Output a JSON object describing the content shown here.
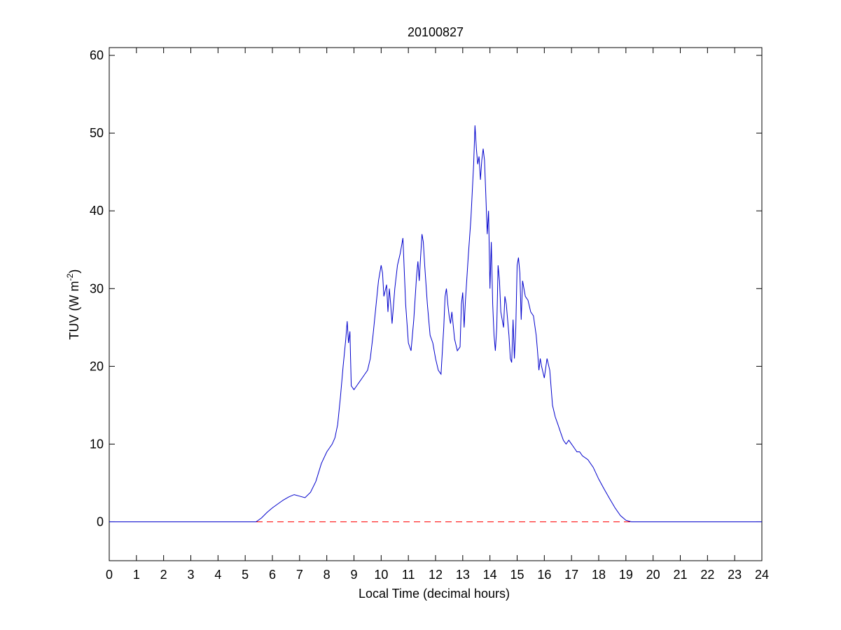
{
  "chart_data": {
    "type": "line",
    "title": "20100827",
    "xlabel": "Local Time (decimal hours)",
    "ylabel_main": "TUV (W m",
    "ylabel_sup": "-2",
    "ylabel_close": ")",
    "xlim": [
      0,
      24
    ],
    "ylim": [
      -5,
      61
    ],
    "xticks": [
      0,
      1,
      2,
      3,
      4,
      5,
      6,
      7,
      8,
      9,
      10,
      11,
      12,
      13,
      14,
      15,
      16,
      17,
      18,
      19,
      20,
      21,
      22,
      23,
      24
    ],
    "yticks": [
      0,
      10,
      20,
      30,
      40,
      50,
      60
    ],
    "grid": false,
    "colors": {
      "series": "#0000cc",
      "reference": "#ff0000",
      "axes": "#000000"
    },
    "reference_line": {
      "y": 0,
      "style": "dashed"
    },
    "series": [
      {
        "x": [
          0,
          5.4,
          5.6,
          5.8,
          6.0,
          6.2,
          6.4,
          6.6,
          6.8,
          7.0,
          7.2,
          7.4,
          7.6,
          7.8,
          8.0,
          8.1,
          8.2,
          8.3,
          8.4,
          8.5,
          8.6,
          8.7,
          8.75,
          8.8,
          8.85,
          8.9,
          9.0,
          9.1,
          9.2,
          9.3,
          9.4,
          9.5,
          9.6,
          9.7,
          9.8,
          9.9,
          10.0,
          10.05,
          10.1,
          10.2,
          10.25,
          10.3,
          10.35,
          10.4,
          10.5,
          10.55,
          10.6,
          10.7,
          10.8,
          10.9,
          11.0,
          11.1,
          11.2,
          11.3,
          11.35,
          11.4,
          11.45,
          11.5,
          11.55,
          11.6,
          11.7,
          11.8,
          11.9,
          12.0,
          12.1,
          12.2,
          12.3,
          12.35,
          12.4,
          12.45,
          12.5,
          12.55,
          12.6,
          12.7,
          12.8,
          12.9,
          12.95,
          13.0,
          13.05,
          13.1,
          13.2,
          13.3,
          13.4,
          13.45,
          13.5,
          13.55,
          13.6,
          13.65,
          13.7,
          13.75,
          13.8,
          13.85,
          13.9,
          13.95,
          14.0,
          14.05,
          14.1,
          14.15,
          14.2,
          14.25,
          14.3,
          14.35,
          14.4,
          14.5,
          14.55,
          14.6,
          14.7,
          14.75,
          14.8,
          14.85,
          14.9,
          14.95,
          15.0,
          15.05,
          15.1,
          15.15,
          15.2,
          15.3,
          15.4,
          15.5,
          15.6,
          15.7,
          15.75,
          15.8,
          15.85,
          15.9,
          16.0,
          16.1,
          16.2,
          16.3,
          16.4,
          16.5,
          16.6,
          16.7,
          16.8,
          16.9,
          17.0,
          17.1,
          17.2,
          17.3,
          17.4,
          17.6,
          17.8,
          18.0,
          18.2,
          18.4,
          18.6,
          18.8,
          19.0,
          19.2,
          19.4,
          24
        ],
        "y": [
          0,
          0,
          0.5,
          1.2,
          1.8,
          2.3,
          2.8,
          3.2,
          3.5,
          3.3,
          3.1,
          3.8,
          5.2,
          7.5,
          9.0,
          9.5,
          10.0,
          10.8,
          12.5,
          16.0,
          20.0,
          23.5,
          25.8,
          23.0,
          24.5,
          17.5,
          17.0,
          17.5,
          18.0,
          18.5,
          19.0,
          19.5,
          21.0,
          24.0,
          27.5,
          31.0,
          33.0,
          32.0,
          29.0,
          30.5,
          27.0,
          30.0,
          28.0,
          25.5,
          30.0,
          31.5,
          33.0,
          34.5,
          36.5,
          28.0,
          23.0,
          22.0,
          26.0,
          31.5,
          33.5,
          31.0,
          34.0,
          37.0,
          36.0,
          33.0,
          28.0,
          24.0,
          23.0,
          21.0,
          19.5,
          19.0,
          25.0,
          29.0,
          30.0,
          28.0,
          26.5,
          25.5,
          27.0,
          23.5,
          22.0,
          22.5,
          28.0,
          29.5,
          25.0,
          28.5,
          34.0,
          39.0,
          46.0,
          51.0,
          48.0,
          46.0,
          47.0,
          44.0,
          46.5,
          48.0,
          46.5,
          42.0,
          37.0,
          40.0,
          30.0,
          36.0,
          28.0,
          24.0,
          22.0,
          25.0,
          33.0,
          31.0,
          27.0,
          25.0,
          29.0,
          28.0,
          24.0,
          21.0,
          20.5,
          26.0,
          21.0,
          25.0,
          33.0,
          34.0,
          32.0,
          26.0,
          31.0,
          29.0,
          28.5,
          27.0,
          26.5,
          24.0,
          22.0,
          19.5,
          21.0,
          20.0,
          18.5,
          21.0,
          19.5,
          15.0,
          13.5,
          12.5,
          11.5,
          10.5,
          10.0,
          10.5,
          10.0,
          9.5,
          9.0,
          9.0,
          8.5,
          8.0,
          7.0,
          5.5,
          4.2,
          3.0,
          1.8,
          0.8,
          0.2,
          0,
          0,
          0
        ]
      }
    ]
  }
}
